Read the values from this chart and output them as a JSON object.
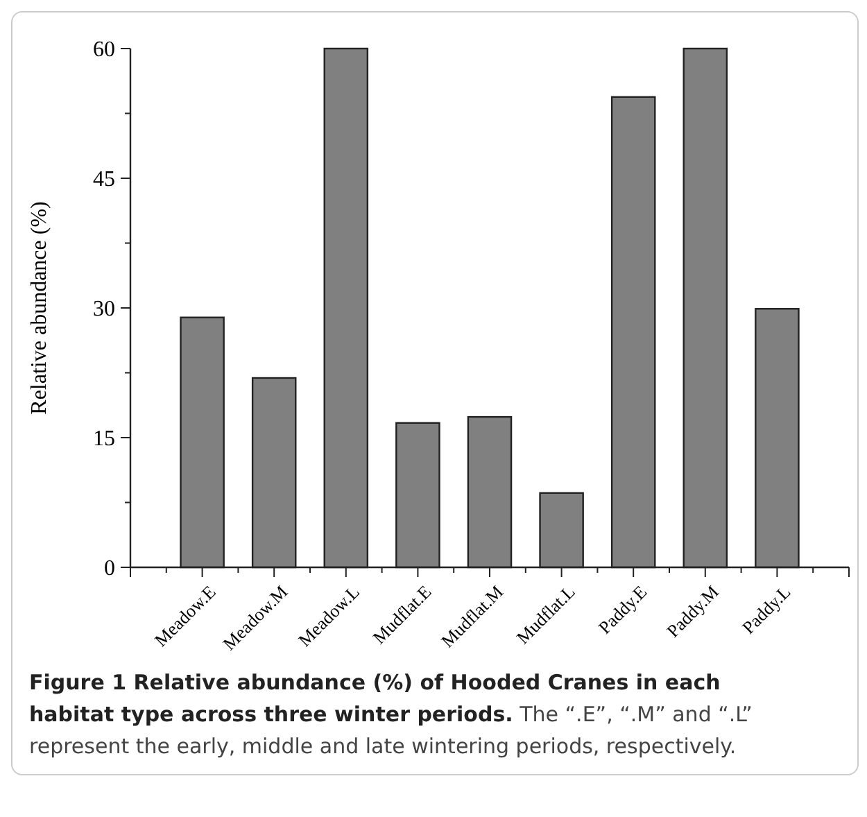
{
  "chart_data": {
    "type": "bar",
    "title": "Figure 1 Relative abundance (%) of Hooded Cranes in each habitat type across three winter periods.",
    "annotations": [
      "The “.E”, “.M” and “.L” represent the early, middle and late wintering periods, respectively."
    ],
    "ylabel": "Relative abundance (%)",
    "categories": [
      "Meadow.E",
      "Meadow.M",
      "Meadow.L",
      "Mudflat.E",
      "Mudflat.M",
      "Mudflat.L",
      "Paddy.E",
      "Paddy.M",
      "Paddy.L"
    ],
    "values": [
      28.9,
      21.9,
      60,
      16.7,
      17.4,
      8.6,
      54.4,
      60,
      29.9
    ],
    "color": "#808080",
    "ylim": [
      0,
      60
    ],
    "yticks": [
      0,
      {
        "value": 7.5,
        "label": null
      },
      15,
      {
        "value": 22.5,
        "label": null
      },
      30,
      {
        "value": 37.5,
        "label": null
      },
      45,
      {
        "value": 52.5,
        "label": null
      },
      60
    ]
  }
}
